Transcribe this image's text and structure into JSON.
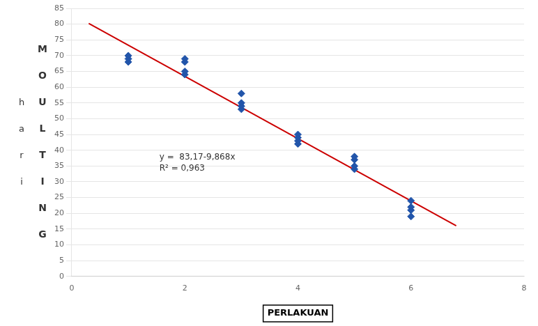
{
  "chart_data": {
    "type": "scatter",
    "xlabel": "PERLAKUAN",
    "ylabel": [
      "hari",
      "MOULTING"
    ],
    "series": [
      {
        "type": "scatter",
        "color": "#2255aa",
        "marker": "diamond",
        "x": [
          1,
          1,
          1,
          2,
          2,
          2,
          2,
          3,
          3,
          3,
          3,
          4,
          4,
          4,
          4,
          5,
          5,
          5,
          5,
          6,
          6,
          6,
          6
        ],
        "values": [
          68,
          69,
          70,
          64,
          65,
          68,
          69,
          53,
          54,
          55,
          58,
          42,
          43,
          44,
          45,
          34,
          35,
          37,
          38,
          19,
          21,
          22,
          24
        ]
      },
      {
        "type": "line",
        "color": "#cc0000",
        "x": [
          0.3,
          6.8
        ],
        "values": [
          80.2096,
          16.0676
        ]
      }
    ],
    "annotations": [
      {
        "text": [
          "y =  83,17-9,868x",
          "R² = 0,963"
        ],
        "x": 1.55,
        "y": 36
      }
    ],
    "xlim": [
      0,
      8
    ],
    "xticks": [
      0,
      2,
      4,
      6,
      8
    ],
    "ylim": [
      0,
      85
    ],
    "yticks": [
      0,
      5,
      10,
      15,
      20,
      25,
      30,
      35,
      40,
      45,
      50,
      55,
      60,
      65,
      70,
      75,
      80,
      85
    ],
    "grid": "y"
  }
}
